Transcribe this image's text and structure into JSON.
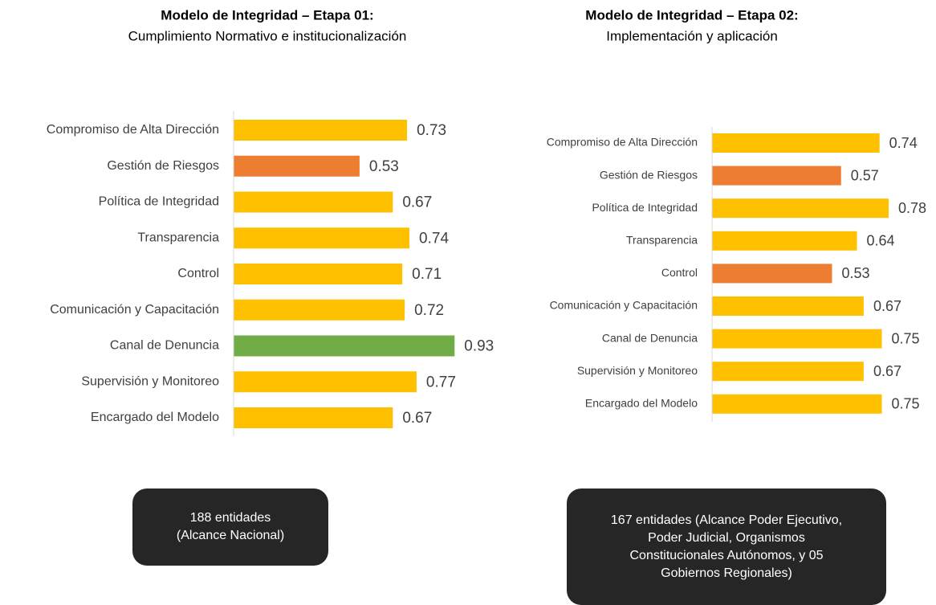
{
  "chart_data": [
    {
      "type": "barh",
      "title": "Modelo de Integridad – Etapa 01:",
      "subtitle": "Cumplimiento Normativo e institucionalización",
      "categories": [
        "Compromiso de Alta Dirección",
        "Gestión de Riesgos",
        "Política de Integridad",
        "Transparencia",
        "Control",
        "Comunicación y Capacitación",
        "Canal de Denuncia",
        "Supervisión y Monitoreo",
        "Encargado del Modelo"
      ],
      "values": [
        0.73,
        0.53,
        0.67,
        0.74,
        0.71,
        0.72,
        0.93,
        0.77,
        0.67
      ],
      "colors": [
        "#FFC000",
        "#ED7D31",
        "#FFC000",
        "#FFC000",
        "#FFC000",
        "#FFC000",
        "#70AD47",
        "#FFC000",
        "#FFC000"
      ],
      "xlim": [
        0,
        1
      ],
      "annotation": "188 entidades (Alcance Nacional)"
    },
    {
      "type": "barh",
      "title": "Modelo de Integridad – Etapa 02:",
      "subtitle": "Implementación y aplicación",
      "categories": [
        "Compromiso de Alta Dirección",
        "Gestión de Riesgos",
        "Política de Integridad",
        "Transparencia",
        "Control",
        "Comunicación y Capacitación",
        "Canal de Denuncia",
        "Supervisión y Monitoreo",
        "Encargado del Modelo"
      ],
      "values": [
        0.74,
        0.57,
        0.78,
        0.64,
        0.53,
        0.67,
        0.75,
        0.67,
        0.75
      ],
      "colors": [
        "#FFC000",
        "#ED7D31",
        "#FFC000",
        "#FFC000",
        "#ED7D31",
        "#FFC000",
        "#FFC000",
        "#FFC000",
        "#FFC000"
      ],
      "xlim": [
        0,
        1
      ],
      "annotation": "167 entidades (Alcance Poder Ejecutivo, Poder Judicial, Organismos Constitucionales Autónomos, y 05 Gobiernos Regionales)"
    }
  ]
}
